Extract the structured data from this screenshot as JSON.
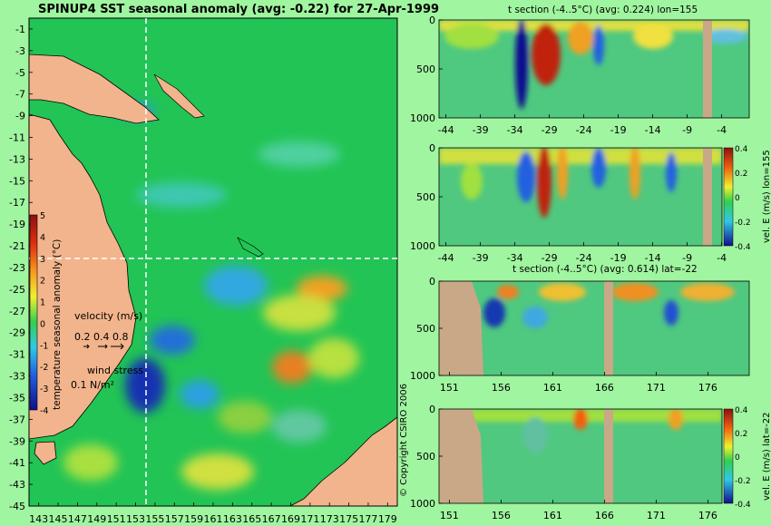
{
  "chart_data": [
    {
      "type": "heatmap",
      "title": "SPINUP4 SST seasonal anomaly (avg: -0.22) for 27-Apr-1999",
      "xticks": [
        "143",
        "145",
        "147",
        "149",
        "151",
        "153",
        "155",
        "157",
        "159",
        "161",
        "163",
        "165",
        "167",
        "169",
        "171",
        "173",
        "175",
        "177",
        "179"
      ],
      "yticks": [
        "-1",
        "-3",
        "-5",
        "-7",
        "-9",
        "-11",
        "-13",
        "-15",
        "-17",
        "-19",
        "-21",
        "-23",
        "-25",
        "-27",
        "-29",
        "-31",
        "-33",
        "-35",
        "-37",
        "-39",
        "-41",
        "-43",
        "-45"
      ],
      "xlim": [
        142,
        180
      ],
      "ylim": [
        -45,
        0
      ],
      "crosshair": {
        "lon": 155,
        "lat": -22
      },
      "colorbar": {
        "label": "temperature seasonal anomaly (°C)",
        "ticks": [
          "5",
          "4",
          "3",
          "2",
          "1",
          "0",
          "-1",
          "-2",
          "-3",
          "-4"
        ],
        "range": [
          -4,
          5
        ]
      },
      "velocity_legend": {
        "title": "velocity (m/s)",
        "values": "0.2 0.4 0.8"
      },
      "wind_legend": {
        "title": "wind stress",
        "value": "0.1 N/m²"
      },
      "copyright": "© Copyright CSIRO 2006"
    },
    {
      "type": "heatmap",
      "title": "t section (-4..5°C) (avg: 0.224) lon=155",
      "xticks": [
        "-44",
        "-39",
        "-34",
        "-29",
        "-24",
        "-19",
        "-14",
        "-9",
        "-4"
      ],
      "xtick_values": [
        -44,
        -39,
        -34,
        -29,
        -24,
        -19,
        -14,
        -9,
        -4
      ],
      "yticks": [
        "0",
        "500",
        "1000"
      ],
      "xlim": [
        -45,
        0
      ],
      "ylim": [
        1000,
        0
      ]
    },
    {
      "type": "heatmap",
      "title": "",
      "xticks": [
        "-44",
        "-39",
        "-34",
        "-29",
        "-24",
        "-19",
        "-14",
        "-9",
        "-4"
      ],
      "xtick_values": [
        -44,
        -39,
        -34,
        -29,
        -24,
        -19,
        -14,
        -9,
        -4
      ],
      "yticks": [
        "0",
        "500",
        "1000"
      ],
      "xlim": [
        -45,
        0
      ],
      "ylim": [
        1000,
        0
      ],
      "colorbar": {
        "label": "vel. E (m/s) lon=155",
        "ticks": [
          "0.4",
          "0.2",
          "0",
          "-0.2",
          "-0.4"
        ],
        "range": [
          -0.4,
          0.4
        ]
      }
    },
    {
      "type": "heatmap",
      "title": "t section (-4..5°C) (avg: 0.614) lat=-22",
      "xticks": [
        "151",
        "156",
        "161",
        "166",
        "171",
        "176"
      ],
      "xtick_values": [
        151,
        156,
        161,
        166,
        171,
        176
      ],
      "yticks": [
        "0",
        "500",
        "1000"
      ],
      "xlim": [
        150,
        180
      ],
      "ylim": [
        1000,
        0
      ]
    },
    {
      "type": "heatmap",
      "title": "",
      "xticks": [
        "151",
        "156",
        "161",
        "166",
        "171",
        "176"
      ],
      "xtick_values": [
        151,
        156,
        161,
        166,
        171,
        176
      ],
      "yticks": [
        "0",
        "500",
        "1000"
      ],
      "xlim": [
        150,
        180
      ],
      "ylim": [
        1000,
        0
      ],
      "colorbar": {
        "label": "vel. E (m/s) lat=-22",
        "ticks": [
          "0.4",
          "0.2",
          "0",
          "-0.2",
          "-0.4"
        ],
        "range": [
          -0.4,
          0.4
        ]
      }
    }
  ],
  "colors": {
    "background": "#a0f5a0",
    "land": "#f2b48c",
    "section_land": "#c8a886",
    "ocean_base": "#22c455"
  }
}
